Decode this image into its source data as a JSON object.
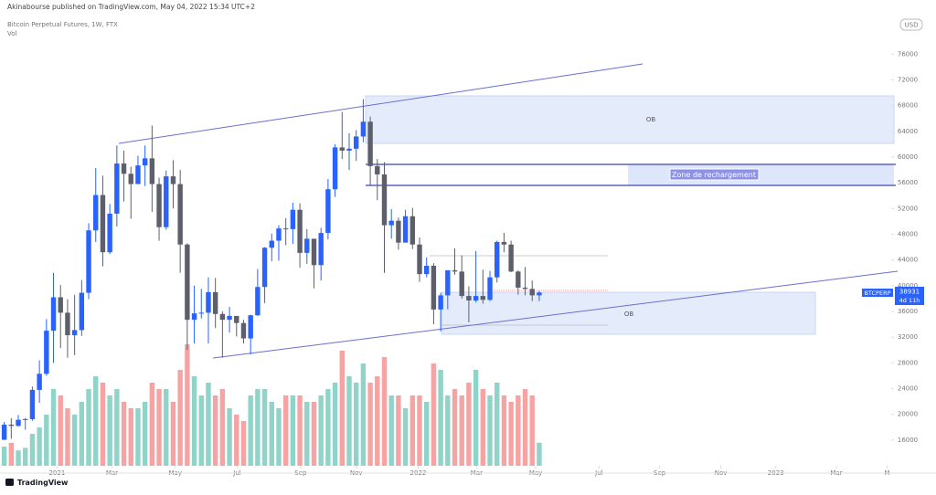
{
  "header": {
    "publisher": "Akinabourse published on TradingView.com, May 04, 2022 15:34 UTC+2",
    "symbol": "Bitcoin Perpetual Futures, 1W, FTX",
    "volume_label": "Vol",
    "currency": "USD",
    "brand": "TradingView"
  },
  "annotations": {
    "ob_top": "OB",
    "ob_bottom": "OB",
    "zone": "Zone de rechargement"
  },
  "price_tag": {
    "symbol": "BTCPERP",
    "price": "38931",
    "countdown": "4d 11h"
  },
  "chart_data": {
    "type": "candlestick",
    "categories": [
      null,
      null,
      null,
      null,
      null,
      null,
      null,
      null,
      null,
      null,
      null,
      null,
      null,
      null,
      null,
      null,
      null,
      null,
      null,
      null,
      null,
      null,
      null,
      null,
      null,
      null,
      null,
      null,
      null,
      null,
      null,
      null,
      null,
      null,
      null,
      null,
      null,
      null,
      null,
      null,
      null,
      null,
      null,
      null,
      null,
      null,
      null,
      null,
      null,
      null,
      null,
      null,
      null,
      null,
      null,
      null,
      null,
      null,
      null,
      null,
      null,
      null,
      null,
      null,
      null,
      null,
      null,
      null,
      null,
      null,
      null,
      null,
      null,
      null,
      null,
      null,
      null
    ],
    "open": [
      16050,
      18400,
      18200,
      19150,
      19250,
      23800,
      26300,
      33000,
      38200,
      35800,
      32300,
      33100,
      38900,
      48600,
      54100,
      45200,
      51200,
      59000,
      57400,
      55800,
      58700,
      59800,
      55800,
      49100,
      57000,
      55800,
      46400,
      34700,
      35700,
      35800,
      39000,
      35600,
      34700,
      35300,
      34200,
      31800,
      35400,
      39800,
      45900,
      47000,
      48900,
      48800,
      51800,
      45100,
      47300,
      43200,
      48200,
      55000,
      61500,
      61000,
      61300,
      63200,
      65500,
      58600,
      57300,
      49400,
      50100,
      46700,
      50800,
      46400,
      41800,
      43100,
      36300,
      38500,
      42400,
      42200,
      38400,
      37700,
      38400,
      37800,
      41300,
      46800,
      46400,
      42200,
      39700,
      39500,
      38500
    ],
    "high": [
      18800,
      19400,
      19900,
      19450,
      24300,
      28400,
      34800,
      42000,
      40100,
      37900,
      38600,
      40900,
      49700,
      58300,
      57100,
      52700,
      61800,
      61000,
      58500,
      60200,
      61800,
      64900,
      56800,
      57900,
      59500,
      58000,
      46600,
      40000,
      39500,
      41300,
      41200,
      36000,
      36700,
      35300,
      34700,
      35500,
      42600,
      46000,
      48100,
      49400,
      50500,
      52900,
      52800,
      48800,
      47300,
      49000,
      56600,
      62000,
      67000,
      63700,
      64200,
      69000,
      66300,
      59700,
      59200,
      51900,
      50600,
      51800,
      52100,
      47500,
      44400,
      43500,
      38900,
      42000,
      45800,
      44700,
      39900,
      45400,
      42500,
      42300,
      47000,
      48200,
      47000,
      42400,
      42900,
      40800,
      39200
    ],
    "low": [
      16000,
      16200,
      18100,
      17600,
      19000,
      21800,
      26000,
      28000,
      30300,
      28800,
      29200,
      32200,
      37900,
      46800,
      43000,
      44900,
      49200,
      53100,
      50400,
      55800,
      55500,
      51500,
      47000,
      48700,
      52000,
      42000,
      30000,
      31000,
      34900,
      31000,
      33400,
      28800,
      32700,
      32100,
      31000,
      29300,
      35300,
      37300,
      43800,
      43900,
      46300,
      46500,
      42800,
      43400,
      39600,
      40800,
      47200,
      53800,
      59700,
      58000,
      59400,
      62300,
      55600,
      53300,
      42000,
      47300,
      45600,
      46700,
      45700,
      40600,
      41300,
      34000,
      32900,
      36300,
      41700,
      38000,
      34300,
      37400,
      37200,
      37600,
      40500,
      45200,
      42100,
      38600,
      38500,
      37600,
      37600
    ],
    "close": [
      18400,
      18200,
      19150,
      19250,
      23800,
      26300,
      33000,
      38200,
      35800,
      32300,
      33100,
      38900,
      48600,
      54100,
      45200,
      51200,
      59000,
      57400,
      55800,
      58700,
      59800,
      55800,
      49100,
      57000,
      55800,
      46400,
      34700,
      35700,
      35800,
      39000,
      35600,
      34700,
      35300,
      34200,
      31800,
      35400,
      39800,
      45900,
      47000,
      48900,
      48800,
      51800,
      45100,
      47300,
      43200,
      48200,
      55000,
      61500,
      61000,
      61300,
      63200,
      65500,
      58600,
      57300,
      49400,
      50100,
      46700,
      50800,
      46400,
      41800,
      43100,
      36300,
      38500,
      42400,
      42200,
      38400,
      37700,
      38400,
      37800,
      41300,
      46800,
      46400,
      42200,
      39700,
      39500,
      38500,
      38931
    ],
    "volume": [
      15,
      18,
      12,
      14,
      25,
      30,
      40,
      60,
      55,
      45,
      40,
      50,
      60,
      70,
      65,
      55,
      60,
      50,
      45,
      45,
      50,
      65,
      60,
      60,
      50,
      75,
      95,
      70,
      55,
      65,
      55,
      60,
      45,
      40,
      35,
      55,
      60,
      60,
      50,
      45,
      55,
      55,
      55,
      50,
      50,
      55,
      60,
      65,
      90,
      70,
      65,
      80,
      65,
      70,
      85,
      55,
      55,
      45,
      55,
      55,
      50,
      80,
      75,
      55,
      60,
      55,
      65,
      75,
      60,
      55,
      65,
      55,
      50,
      55,
      60,
      55,
      18
    ],
    "up_color": "#2962ff",
    "down_color": "#5d606b",
    "volume_up_color": "#8fd3c9",
    "volume_down_color": "#f5a3a3",
    "xlim": [
      -0.6,
      126
    ],
    "xticks": [
      {
        "value": 7.5,
        "label": "2021"
      },
      {
        "value": 15.3,
        "label": "Mar"
      },
      {
        "value": 24.3,
        "label": "May"
      },
      {
        "value": 33.1,
        "label": "Jul"
      },
      {
        "value": 42.1,
        "label": "Sep"
      },
      {
        "value": 50,
        "label": "Nov"
      },
      {
        "value": 58.8,
        "label": "2022"
      },
      {
        "value": 67.1,
        "label": "Mar"
      },
      {
        "value": 75.5,
        "label": "May"
      },
      {
        "value": 84.5,
        "label": "Jul"
      },
      {
        "value": 93.1,
        "label": "Sep"
      },
      {
        "value": 101.8,
        "label": "Nov"
      },
      {
        "value": 109.6,
        "label": "2023"
      },
      {
        "value": 118.2,
        "label": "Mar"
      },
      {
        "value": 125.4,
        "label": "M"
      }
    ],
    "ylim": [
      12000,
      83000
    ],
    "yticks": [
      16000,
      20000,
      24000,
      28000,
      32000,
      36000,
      40000,
      44000,
      48000,
      52000,
      56000,
      60000,
      64000,
      68000,
      72000,
      76000
    ],
    "y2lim": [
      0,
      100
    ]
  }
}
